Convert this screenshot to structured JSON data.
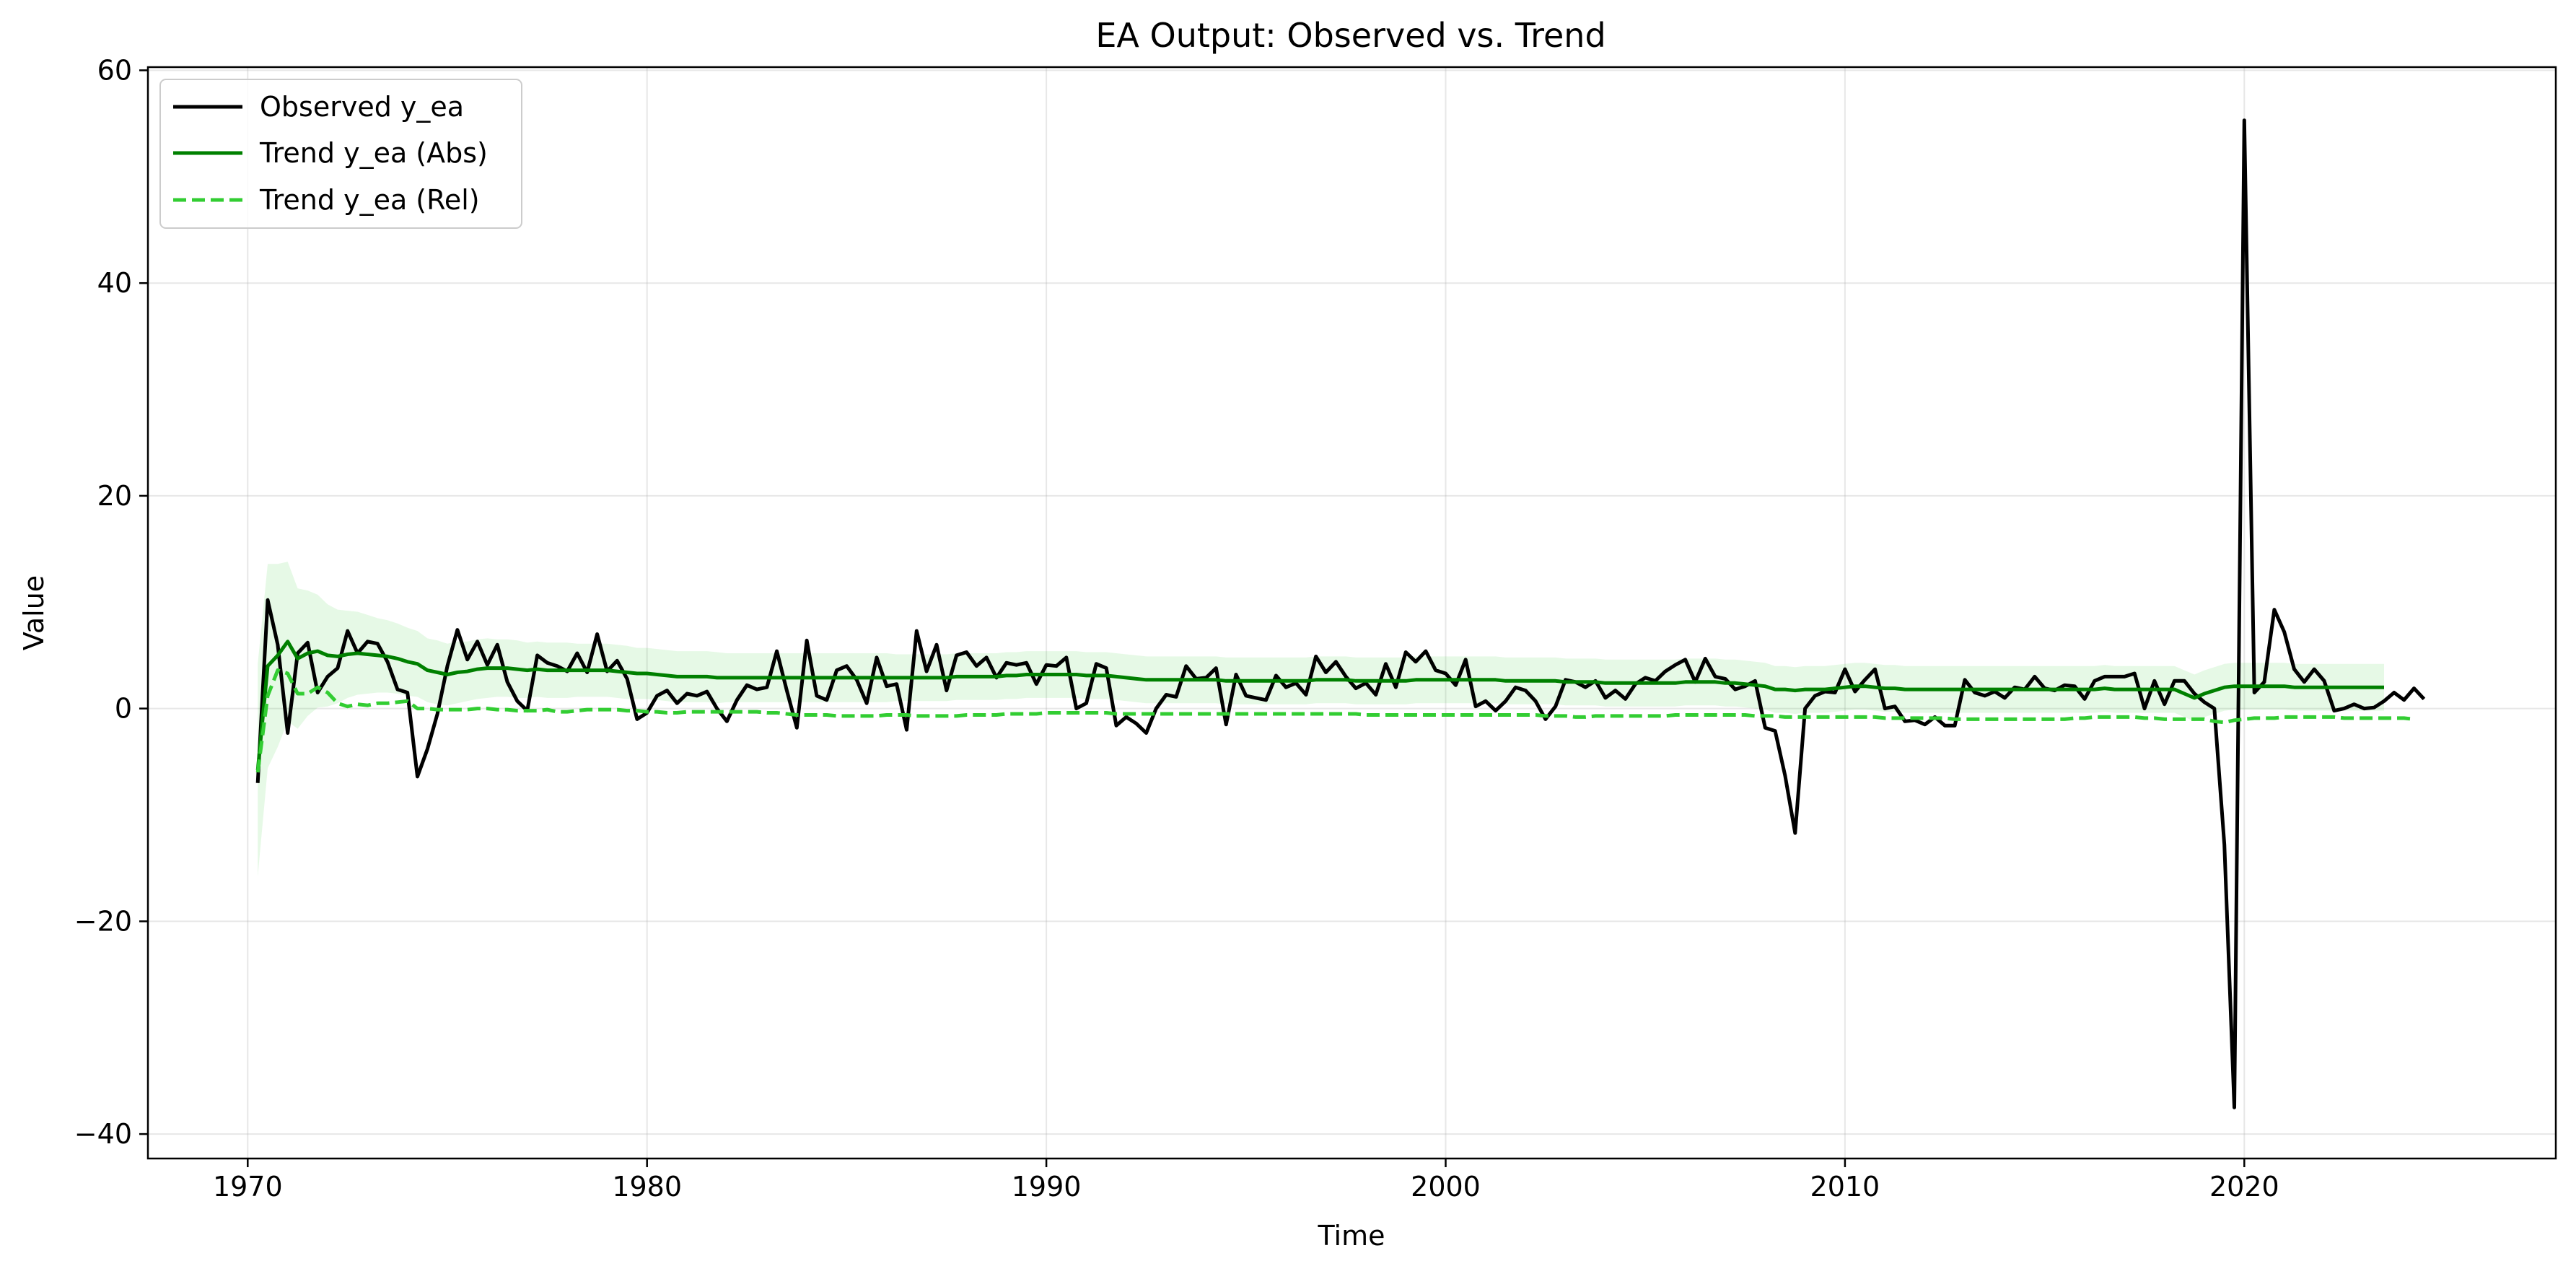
{
  "chart_data": {
    "type": "line",
    "title": "EA Output: Observed vs. Trend",
    "xlabel": "Time",
    "ylabel": "Value",
    "xlim": [
      1967.5,
      2027.8
    ],
    "ylim": [
      -42.3,
      60.3
    ],
    "xticks": [
      1970,
      1980,
      1990,
      2000,
      2010,
      2020
    ],
    "yticks": [
      -40,
      -20,
      0,
      20,
      40,
      60
    ],
    "ytick_labels": [
      "−40",
      "−20",
      "0",
      "20",
      "40",
      "60"
    ],
    "grid": true,
    "legend_position": "top-left",
    "x_start": 1970.25,
    "x_step": 0.25,
    "series": [
      {
        "name": "Observed y_ea",
        "color": "#000000",
        "style": "solid",
        "values": [
          -7,
          10.2,
          6,
          -2.3,
          5.2,
          6.2,
          1.5,
          3,
          3.8,
          7.3,
          5.2,
          6.3,
          6.1,
          4.4,
          1.8,
          1.5,
          -6.4,
          -3.8,
          -0.5,
          4,
          7.4,
          4.6,
          6.3,
          4.1,
          6,
          2.5,
          0.7,
          -0.2,
          5,
          4.3,
          4,
          3.5,
          5.2,
          3.4,
          7,
          3.5,
          4.5,
          2.8,
          -1,
          -0.4,
          1.2,
          1.7,
          0.5,
          1.4,
          1.2,
          1.6,
          0,
          -1.2,
          0.8,
          2.2,
          1.8,
          2,
          5.4,
          1.7,
          -1.8,
          6.4,
          1.2,
          0.8,
          3.6,
          4,
          2.7,
          0.5,
          4.8,
          2.1,
          2.3,
          -2,
          7.3,
          3.5,
          6,
          1.7,
          5,
          5.3,
          4,
          4.8,
          2.9,
          4.3,
          4.1,
          4.3,
          2.3,
          4.1,
          4,
          4.8,
          0,
          0.5,
          4.2,
          3.8,
          -1.6,
          -0.8,
          -1.4,
          -2.3,
          0,
          1.3,
          1.1,
          4,
          2.8,
          2.9,
          3.8,
          -1.5,
          3.2,
          1.2,
          1,
          0.8,
          3.1,
          2,
          2.4,
          1.3,
          4.9,
          3.4,
          4.4,
          3,
          1.9,
          2.4,
          1.3,
          4.2,
          2,
          5.3,
          4.4,
          5.4,
          3.6,
          3.3,
          2.2,
          4.6,
          0.2,
          0.7,
          -0.2,
          0.7,
          2,
          1.7,
          0.7,
          -1,
          0.2,
          2.7,
          2.5,
          2,
          2.6,
          1,
          1.7,
          0.9,
          2.3,
          2.9,
          2.6,
          3.5,
          4.1,
          4.6,
          2.5,
          4.7,
          3,
          2.8,
          1.8,
          2.1,
          2.6,
          -1.8,
          -2.1,
          -6.3,
          -11.7,
          0,
          1.2,
          1.6,
          1.5,
          3.7,
          1.6,
          2.7,
          3.7,
          0,
          0.2,
          -1.2,
          -1.1,
          -1.5,
          -0.8,
          -1.6,
          -1.6,
          2.7,
          1.5,
          1.2,
          1.6,
          1,
          2,
          1.8,
          3,
          1.9,
          1.7,
          2.2,
          2.1,
          0.9,
          2.6,
          3,
          3,
          3,
          3.3,
          0,
          2.6,
          0.4,
          2.6,
          2.6,
          1.4,
          0.6,
          0,
          -12.8,
          -37.5,
          55.3,
          1.5,
          2.5,
          9.3,
          7.2,
          3.7,
          2.5,
          3.7,
          2.6,
          -0.2,
          0,
          0.4,
          0,
          0.1,
          0.7,
          1.5,
          0.8,
          1.9,
          0.9
        ]
      },
      {
        "name": "Trend y_ea (Abs)",
        "color": "#008000",
        "style": "solid",
        "values": [
          -5.8,
          4,
          5,
          6.3,
          4.7,
          5.2,
          5.4,
          5,
          4.9,
          5.1,
          5.2,
          5.1,
          5,
          4.9,
          4.7,
          4.4,
          4.2,
          3.6,
          3.4,
          3.2,
          3.4,
          3.5,
          3.7,
          3.8,
          3.8,
          3.8,
          3.7,
          3.6,
          3.7,
          3.6,
          3.6,
          3.6,
          3.6,
          3.6,
          3.6,
          3.6,
          3.5,
          3.4,
          3.3,
          3.3,
          3.2,
          3.1,
          3,
          3,
          3,
          3,
          2.9,
          2.9,
          2.9,
          2.9,
          2.9,
          2.9,
          2.9,
          2.9,
          2.9,
          2.9,
          2.9,
          2.9,
          2.9,
          2.9,
          2.9,
          2.9,
          2.9,
          2.9,
          2.9,
          2.9,
          2.9,
          2.9,
          2.9,
          2.9,
          3,
          3,
          3,
          3,
          3,
          3.1,
          3.1,
          3.2,
          3.2,
          3.2,
          3.2,
          3.2,
          3.2,
          3.1,
          3.1,
          3.1,
          3,
          2.9,
          2.8,
          2.7,
          2.7,
          2.7,
          2.7,
          2.7,
          2.7,
          2.7,
          2.7,
          2.6,
          2.6,
          2.6,
          2.6,
          2.6,
          2.6,
          2.6,
          2.6,
          2.6,
          2.7,
          2.7,
          2.7,
          2.7,
          2.6,
          2.6,
          2.6,
          2.6,
          2.6,
          2.6,
          2.7,
          2.7,
          2.7,
          2.7,
          2.7,
          2.7,
          2.7,
          2.7,
          2.7,
          2.6,
          2.6,
          2.6,
          2.6,
          2.6,
          2.6,
          2.5,
          2.5,
          2.5,
          2.5,
          2.4,
          2.4,
          2.4,
          2.4,
          2.4,
          2.4,
          2.4,
          2.4,
          2.5,
          2.5,
          2.5,
          2.5,
          2.4,
          2.4,
          2.3,
          2.2,
          2.1,
          1.8,
          1.8,
          1.7,
          1.8,
          1.8,
          1.8,
          1.9,
          2,
          2.1,
          2.1,
          2,
          1.9,
          1.9,
          1.8,
          1.8,
          1.8,
          1.8,
          1.8,
          1.8,
          1.8,
          1.8,
          1.8,
          1.8,
          1.8,
          1.8,
          1.8,
          1.8,
          1.8,
          1.8,
          1.8,
          1.8,
          1.8,
          1.8,
          1.9,
          1.8,
          1.8,
          1.8,
          1.8,
          1.8,
          1.8,
          1.8,
          1.4,
          1,
          1.4,
          1.7,
          2,
          2.1,
          2.1,
          2.1,
          2.1,
          2.1,
          2.1,
          2,
          2,
          2,
          2,
          2,
          2,
          2,
          2,
          2,
          2
        ]
      },
      {
        "name": "Trend y_ea (Rel)",
        "color": "#32CD32",
        "style": "dashed",
        "values": [
          -6,
          1.2,
          3.6,
          3.3,
          1.4,
          1.4,
          2,
          1.5,
          0.5,
          0.2,
          0.4,
          0.3,
          0.5,
          0.5,
          0.6,
          0.7,
          0,
          0,
          -0.1,
          -0.1,
          -0.1,
          -0.1,
          0,
          0,
          -0.1,
          -0.1,
          -0.2,
          -0.2,
          -0.2,
          -0.1,
          -0.3,
          -0.3,
          -0.2,
          -0.1,
          -0.1,
          -0.1,
          -0.1,
          -0.2,
          -0.2,
          -0.3,
          -0.3,
          -0.4,
          -0.4,
          -0.3,
          -0.3,
          -0.3,
          -0.3,
          -0.3,
          -0.3,
          -0.3,
          -0.3,
          -0.4,
          -0.4,
          -0.5,
          -0.6,
          -0.6,
          -0.6,
          -0.6,
          -0.7,
          -0.7,
          -0.7,
          -0.7,
          -0.7,
          -0.6,
          -0.6,
          -0.6,
          -0.7,
          -0.7,
          -0.7,
          -0.7,
          -0.7,
          -0.6,
          -0.6,
          -0.6,
          -0.6,
          -0.5,
          -0.5,
          -0.5,
          -0.5,
          -0.4,
          -0.4,
          -0.4,
          -0.4,
          -0.4,
          -0.4,
          -0.4,
          -0.5,
          -0.5,
          -0.5,
          -0.5,
          -0.5,
          -0.5,
          -0.5,
          -0.5,
          -0.5,
          -0.5,
          -0.5,
          -0.5,
          -0.5,
          -0.5,
          -0.5,
          -0.5,
          -0.5,
          -0.5,
          -0.5,
          -0.5,
          -0.5,
          -0.5,
          -0.5,
          -0.5,
          -0.5,
          -0.6,
          -0.6,
          -0.6,
          -0.6,
          -0.6,
          -0.6,
          -0.6,
          -0.6,
          -0.6,
          -0.6,
          -0.6,
          -0.6,
          -0.6,
          -0.6,
          -0.6,
          -0.6,
          -0.6,
          -0.6,
          -0.7,
          -0.7,
          -0.7,
          -0.8,
          -0.8,
          -0.7,
          -0.7,
          -0.7,
          -0.7,
          -0.7,
          -0.7,
          -0.7,
          -0.7,
          -0.6,
          -0.6,
          -0.6,
          -0.6,
          -0.6,
          -0.6,
          -0.6,
          -0.6,
          -0.7,
          -0.7,
          -0.7,
          -0.8,
          -0.8,
          -0.8,
          -0.8,
          -0.8,
          -0.8,
          -0.8,
          -0.8,
          -0.8,
          -0.8,
          -0.9,
          -0.9,
          -0.9,
          -0.9,
          -0.9,
          -0.9,
          -0.9,
          -1,
          -1,
          -1,
          -1,
          -1,
          -1,
          -1,
          -1,
          -1,
          -1,
          -1,
          -1,
          -0.9,
          -0.9,
          -0.8,
          -0.8,
          -0.8,
          -0.8,
          -0.8,
          -0.9,
          -0.9,
          -1,
          -1,
          -1,
          -1,
          -1,
          -1.2,
          -1.3,
          -1.1,
          -1,
          -0.9,
          -0.9,
          -0.9,
          -0.8,
          -0.8,
          -0.8,
          -0.8,
          -0.8,
          -0.8,
          -0.9,
          -0.9,
          -0.9,
          -0.9,
          -0.9,
          -0.9,
          -0.9,
          -1
        ]
      }
    ],
    "band": {
      "color": "#32CD32",
      "opacity": 0.12,
      "half_width": [
        10,
        9.6,
        8.6,
        7.5,
        6.6,
        5.9,
        5.3,
        4.8,
        4.4,
        4.1,
        3.9,
        3.7,
        3.5,
        3.4,
        3.3,
        3.2,
        3.1,
        3,
        3,
        2.9,
        2.9,
        2.8,
        2.8,
        2.8,
        2.7,
        2.7,
        2.7,
        2.6,
        2.6,
        2.6,
        2.6,
        2.6,
        2.5,
        2.5,
        2.5,
        2.5,
        2.5,
        2.5,
        2.4,
        2.4,
        2.4,
        2.4,
        2.4,
        2.4,
        2.4,
        2.4,
        2.4,
        2.3,
        2.3,
        2.3,
        2.3,
        2.3,
        2.3,
        2.3,
        2.3,
        2.3,
        2.3,
        2.3,
        2.3,
        2.3,
        2.3,
        2.3,
        2.3,
        2.3,
        2.2,
        2.2,
        2.2,
        2.2,
        2.2,
        2.2,
        2.2,
        2.2,
        2.2,
        2.2,
        2.2,
        2.2,
        2.2,
        2.2,
        2.2,
        2.2,
        2.2,
        2.2,
        2.2,
        2.2,
        2.2,
        2.2,
        2.2,
        2.2,
        2.2,
        2.2,
        2.2,
        2.2,
        2.2,
        2.2,
        2.2,
        2.2,
        2.2,
        2.2,
        2.2,
        2.2,
        2.2,
        2.2,
        2.2,
        2.2,
        2.2,
        2.2,
        2.2,
        2.2,
        2.2,
        2.2,
        2.2,
        2.2,
        2.2,
        2.2,
        2.2,
        2.2,
        2.2,
        2.2,
        2.2,
        2.2,
        2.2,
        2.2,
        2.2,
        2.2,
        2.2,
        2.2,
        2.2,
        2.2,
        2.2,
        2.2,
        2.2,
        2.2,
        2.2,
        2.2,
        2.2,
        2.2,
        2.2,
        2.2,
        2.2,
        2.2,
        2.2,
        2.2,
        2.2,
        2.2,
        2.2,
        2.2,
        2.2,
        2.2,
        2.2,
        2.2,
        2.2,
        2.2,
        2.2,
        2.2,
        2.2,
        2.2,
        2.2,
        2.2,
        2.2,
        2.2,
        2.2,
        2.2,
        2.2,
        2.2,
        2.2,
        2.2,
        2.2,
        2.2,
        2.2,
        2.2,
        2.2,
        2.2,
        2.2,
        2.2,
        2.2,
        2.2,
        2.2,
        2.2,
        2.2,
        2.2,
        2.2,
        2.2,
        2.2,
        2.2,
        2.2,
        2.2,
        2.2,
        2.2,
        2.2,
        2.2,
        2.2,
        2.2,
        2.2,
        2.2,
        2.2,
        2.2,
        2.2,
        2.2,
        2.2,
        2.2,
        2.2,
        2.2,
        2.2,
        2.2,
        2.2,
        2.2,
        2.2,
        2.2,
        2.2,
        2.2,
        2.2,
        2.2,
        2.2,
        2.2,
        2.2,
        2.2,
        2.2,
        2.2
      ]
    }
  }
}
